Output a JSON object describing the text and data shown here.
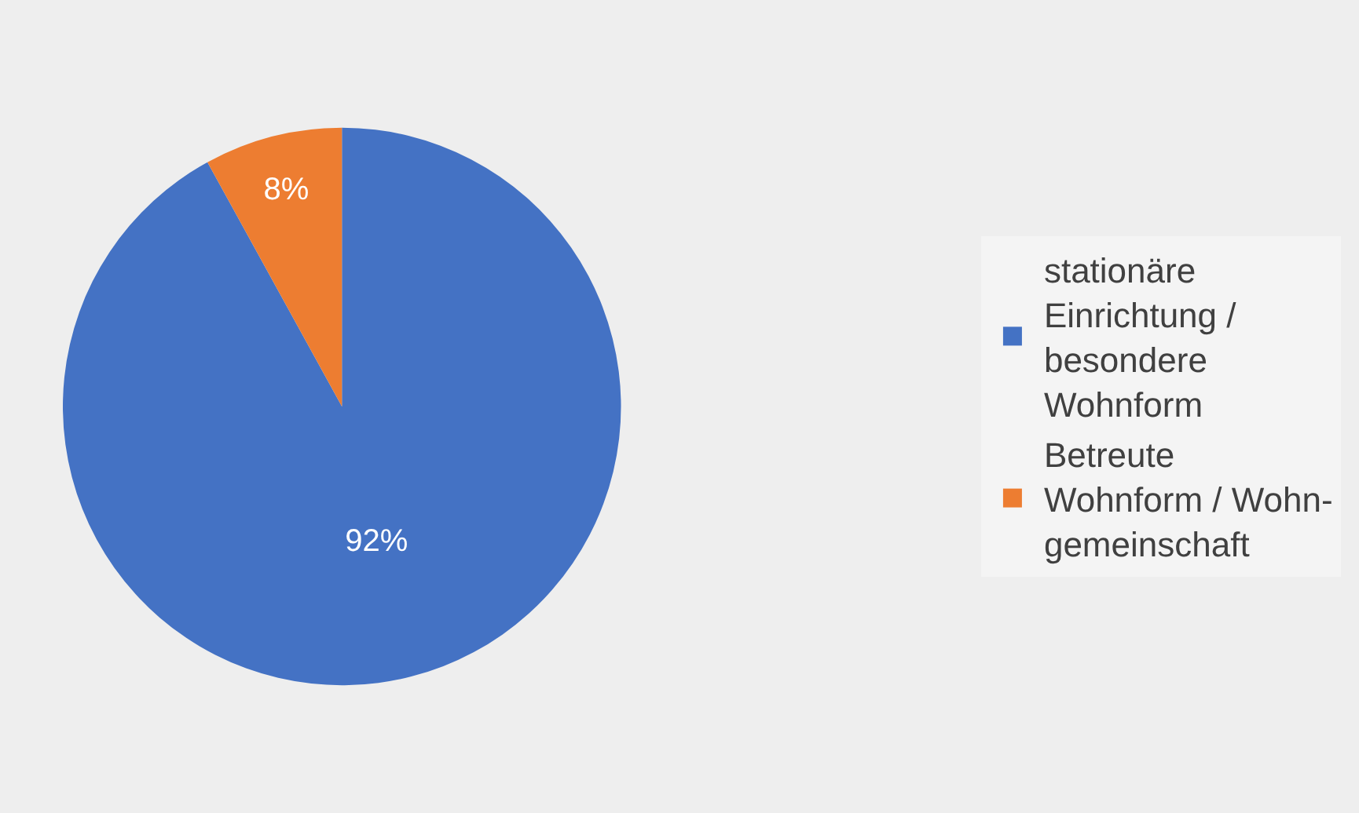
{
  "chart_data": {
    "type": "pie",
    "categories": [
      "stationäre Einrichtung / besondere Wohnform",
      "Betreute Wohnform / Wohn-gemeinschaft"
    ],
    "values": [
      92,
      8
    ],
    "colors": [
      "#4472c4",
      "#ed7d31"
    ],
    "value_labels": [
      "92%",
      "8%"
    ],
    "legend": "right"
  }
}
